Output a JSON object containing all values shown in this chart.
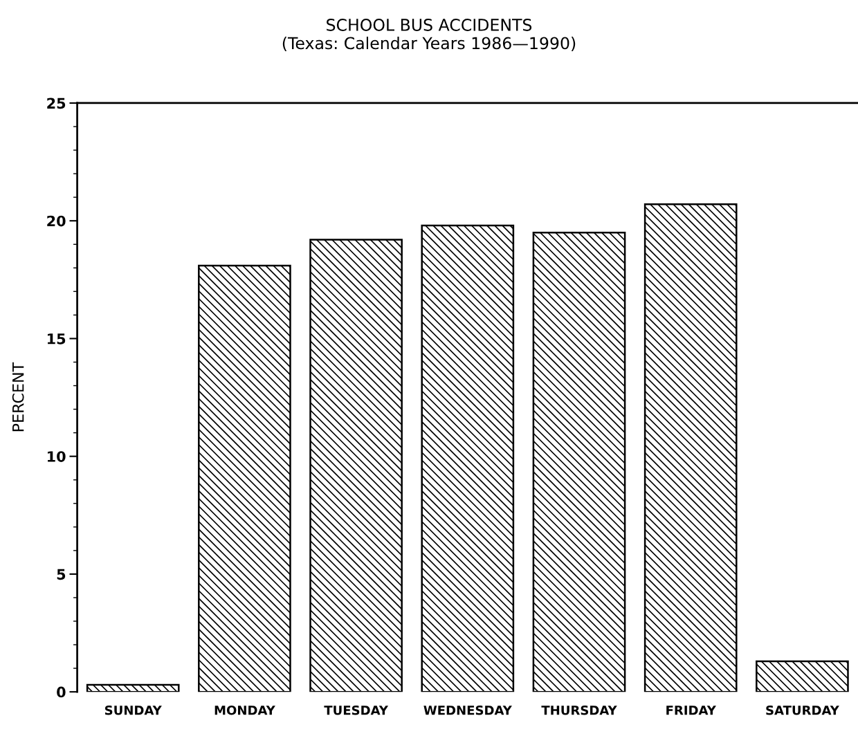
{
  "chart_data": {
    "type": "bar",
    "title": "SCHOOL BUS ACCIDENTS\n(Texas: Calendar Years 1986—1990)",
    "ylabel": "PERCENT",
    "categories": [
      "SUNDAY",
      "MONDAY",
      "TUESDAY",
      "WEDNESDAY",
      "THURSDAY",
      "FRIDAY",
      "SATURDAY"
    ],
    "values": [
      0.3,
      18.1,
      19.2,
      19.8,
      19.5,
      20.7,
      1.3
    ],
    "color": "#000000",
    "ylim": [
      0,
      25
    ],
    "yticks": [
      0,
      5,
      10,
      15,
      20,
      25
    ],
    "grid": false,
    "legend": false
  }
}
